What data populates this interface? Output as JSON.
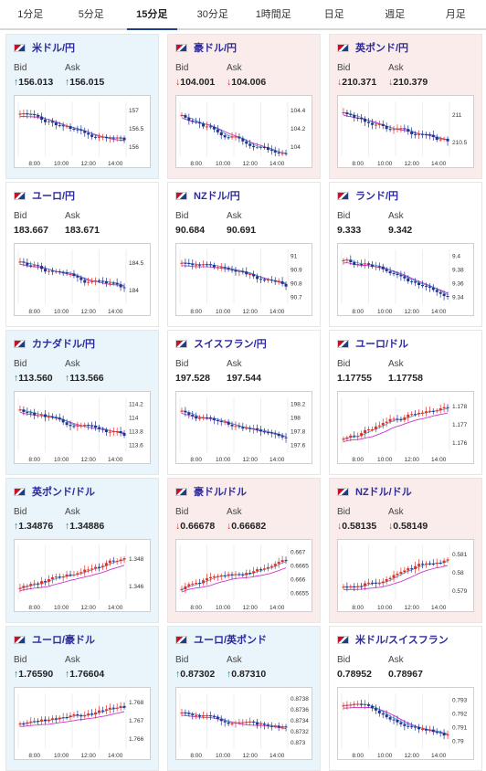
{
  "tabs": [
    "1分足",
    "5分足",
    "15分足",
    "30分足",
    "1時間足",
    "日足",
    "週足",
    "月足"
  ],
  "active_tab": "15分足",
  "labels": {
    "bid": "Bid",
    "ask": "Ask"
  },
  "colors": {
    "up_card": "#e9f4fb",
    "down_card": "#fbecec",
    "accent": "#1c3f8f",
    "candle_up": "#e0302a",
    "candle_down": "#22338a",
    "ma": "#cc33cc",
    "ma2": "#3aa0d8"
  },
  "cards": [
    {
      "pair": "米ドル/円",
      "flag": "us-jp-flag-icon",
      "trend": "up",
      "bid": "156.013",
      "ask": "156.015",
      "bid_arrow": "↑",
      "ask_arrow": "↑",
      "yticks": [
        "157",
        "156.5",
        "156"
      ],
      "xticks": [
        "8:00",
        "10:00",
        "12:00",
        "14:00"
      ]
    },
    {
      "pair": "豪ドル/円",
      "flag": "au-jp-flag-icon",
      "trend": "down",
      "bid": "104.001",
      "ask": "104.006",
      "bid_arrow": "↓",
      "ask_arrow": "↓",
      "yticks": [
        "104.4",
        "104.2",
        "104"
      ],
      "xticks": [
        "8:00",
        "10:00",
        "12:00",
        "14:00"
      ]
    },
    {
      "pair": "英ポンド/円",
      "flag": "gb-jp-flag-icon",
      "trend": "down",
      "bid": "210.371",
      "ask": "210.379",
      "bid_arrow": "↓",
      "ask_arrow": "↓",
      "yticks": [
        "211",
        "210.5"
      ],
      "xticks": [
        "8:00",
        "10:00",
        "12:00",
        "14:00"
      ]
    },
    {
      "pair": "ユーロ/円",
      "flag": "eu-jp-flag-icon",
      "trend": "flat",
      "bid": "183.667",
      "ask": "183.671",
      "bid_arrow": "",
      "ask_arrow": "",
      "yticks": [
        "184.5",
        "184"
      ],
      "xticks": [
        "8:00",
        "10:00",
        "12:00",
        "14:00"
      ]
    },
    {
      "pair": "NZドル/円",
      "flag": "nz-jp-flag-icon",
      "trend": "flat",
      "bid": "90.684",
      "ask": "90.691",
      "bid_arrow": "",
      "ask_arrow": "",
      "yticks": [
        "91",
        "90.9",
        "90.8",
        "90.7"
      ],
      "xticks": [
        "8:00",
        "10:00",
        "12:00",
        "14:00"
      ]
    },
    {
      "pair": "ランド/円",
      "flag": "za-jp-flag-icon",
      "trend": "flat",
      "bid": "9.333",
      "ask": "9.342",
      "bid_arrow": "",
      "ask_arrow": "",
      "yticks": [
        "9.4",
        "9.38",
        "9.36",
        "9.34"
      ],
      "xticks": [
        "8:00",
        "10:00",
        "12:00",
        "14:00"
      ]
    },
    {
      "pair": "カナダドル/円",
      "flag": "ca-jp-flag-icon",
      "trend": "up",
      "bid": "113.560",
      "ask": "113.566",
      "bid_arrow": "↑",
      "ask_arrow": "↑",
      "yticks": [
        "114.2",
        "114",
        "113.8",
        "113.6"
      ],
      "xticks": [
        "8:00",
        "10:00",
        "12:00",
        "14:00"
      ]
    },
    {
      "pair": "スイスフラン/円",
      "flag": "ch-jp-flag-icon",
      "trend": "flat",
      "bid": "197.528",
      "ask": "197.544",
      "bid_arrow": "",
      "ask_arrow": "",
      "yticks": [
        "198.2",
        "198",
        "197.8",
        "197.6"
      ],
      "xticks": [
        "8:00",
        "10:00",
        "12:00",
        "14:00"
      ]
    },
    {
      "pair": "ユーロ/ドル",
      "flag": "eu-us-flag-icon",
      "trend": "flat",
      "bid": "1.17755",
      "ask": "1.17758",
      "bid_arrow": "",
      "ask_arrow": "",
      "yticks": [
        "1.178",
        "1.177",
        "1.176"
      ],
      "xticks": [
        "8:00",
        "10:00",
        "12:00",
        "14:00"
      ]
    },
    {
      "pair": "英ポンド/ドル",
      "flag": "gb-us-flag-icon",
      "trend": "up",
      "bid": "1.34876",
      "ask": "1.34886",
      "bid_arrow": "↑",
      "ask_arrow": "↑",
      "yticks": [
        "1.348",
        "1.346"
      ],
      "xticks": [
        "8:00",
        "10:00",
        "12:00",
        "14:00"
      ]
    },
    {
      "pair": "豪ドル/ドル",
      "flag": "au-us-flag-icon",
      "trend": "down",
      "bid": "0.66678",
      "ask": "0.66682",
      "bid_arrow": "↓",
      "ask_arrow": "↓",
      "yticks": [
        "0.667",
        "0.6665",
        "0.666",
        "0.6655"
      ],
      "xticks": [
        "8:00",
        "10:00",
        "12:00",
        "14:00"
      ]
    },
    {
      "pair": "NZドル/ドル",
      "flag": "nz-us-flag-icon",
      "trend": "down",
      "bid": "0.58135",
      "ask": "0.58149",
      "bid_arrow": "↓",
      "ask_arrow": "↓",
      "yticks": [
        "0.581",
        "0.58",
        "0.579"
      ],
      "xticks": [
        "8:00",
        "10:00",
        "12:00",
        "14:00"
      ]
    },
    {
      "pair": "ユーロ/豪ドル",
      "flag": "eu-au-flag-icon",
      "trend": "up",
      "bid": "1.76590",
      "ask": "1.76604",
      "bid_arrow": "↑",
      "ask_arrow": "↑",
      "yticks": [
        "1.768",
        "1.767",
        "1.766"
      ],
      "xticks": [
        "8:00",
        "10:00",
        "12:00",
        "14:00"
      ]
    },
    {
      "pair": "ユーロ/英ポンド",
      "flag": "eu-gb-flag-icon",
      "trend": "up",
      "bid": "0.87302",
      "ask": "0.87310",
      "bid_arrow": "↑",
      "ask_arrow": "↑",
      "yticks": [
        "0.8738",
        "0.8736",
        "0.8734",
        "0.8732",
        "0.873"
      ],
      "xticks": [
        "8:00",
        "10:00",
        "12:00",
        "14:00"
      ]
    },
    {
      "pair": "米ドル/スイスフラン",
      "flag": "us-ch-flag-icon",
      "trend": "flat",
      "bid": "0.78952",
      "ask": "0.78967",
      "bid_arrow": "",
      "ask_arrow": "",
      "yticks": [
        "0.793",
        "0.792",
        "0.791",
        "0.79"
      ],
      "xticks": [
        "8:00",
        "10:00",
        "12:00",
        "14:00"
      ]
    }
  ]
}
